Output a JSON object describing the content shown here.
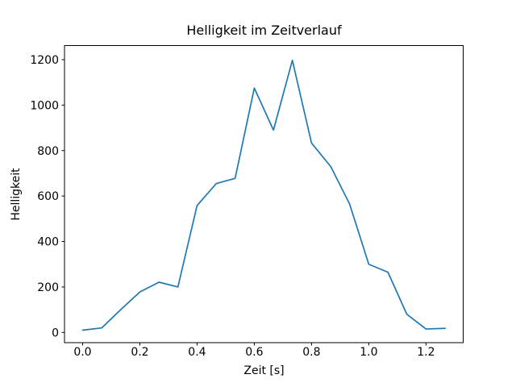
{
  "chart_data": {
    "type": "line",
    "title": "Helligkeit im Zeitverlauf",
    "xlabel": "Zeit [s]",
    "ylabel": "Helligkeit",
    "x": [
      0.0,
      0.067,
      0.133,
      0.2,
      0.267,
      0.333,
      0.4,
      0.467,
      0.533,
      0.6,
      0.667,
      0.733,
      0.8,
      0.867,
      0.933,
      1.0,
      1.067,
      1.133,
      1.2,
      1.267
    ],
    "y": [
      10,
      20,
      100,
      178,
      221,
      200,
      558,
      655,
      678,
      1075,
      890,
      1197,
      833,
      730,
      565,
      300,
      265,
      80,
      15,
      18
    ],
    "x_ticks": {
      "values": [
        0.0,
        0.2,
        0.4,
        0.6,
        0.8,
        1.0,
        1.2
      ],
      "labels": [
        "0.0",
        "0.2",
        "0.4",
        "0.6",
        "0.8",
        "1.0",
        "1.2"
      ]
    },
    "y_ticks": {
      "values": [
        0,
        200,
        400,
        600,
        800,
        1000,
        1200
      ],
      "labels": [
        "0",
        "200",
        "400",
        "600",
        "800",
        "1000",
        "1200"
      ]
    },
    "xlim": [
      -0.0633,
      1.33
    ],
    "ylim": [
      -45,
      1262
    ],
    "line_color": "#1f77b4",
    "axis_color": "#000000",
    "background_color": "#ffffff",
    "grid": false,
    "legend": null
  }
}
